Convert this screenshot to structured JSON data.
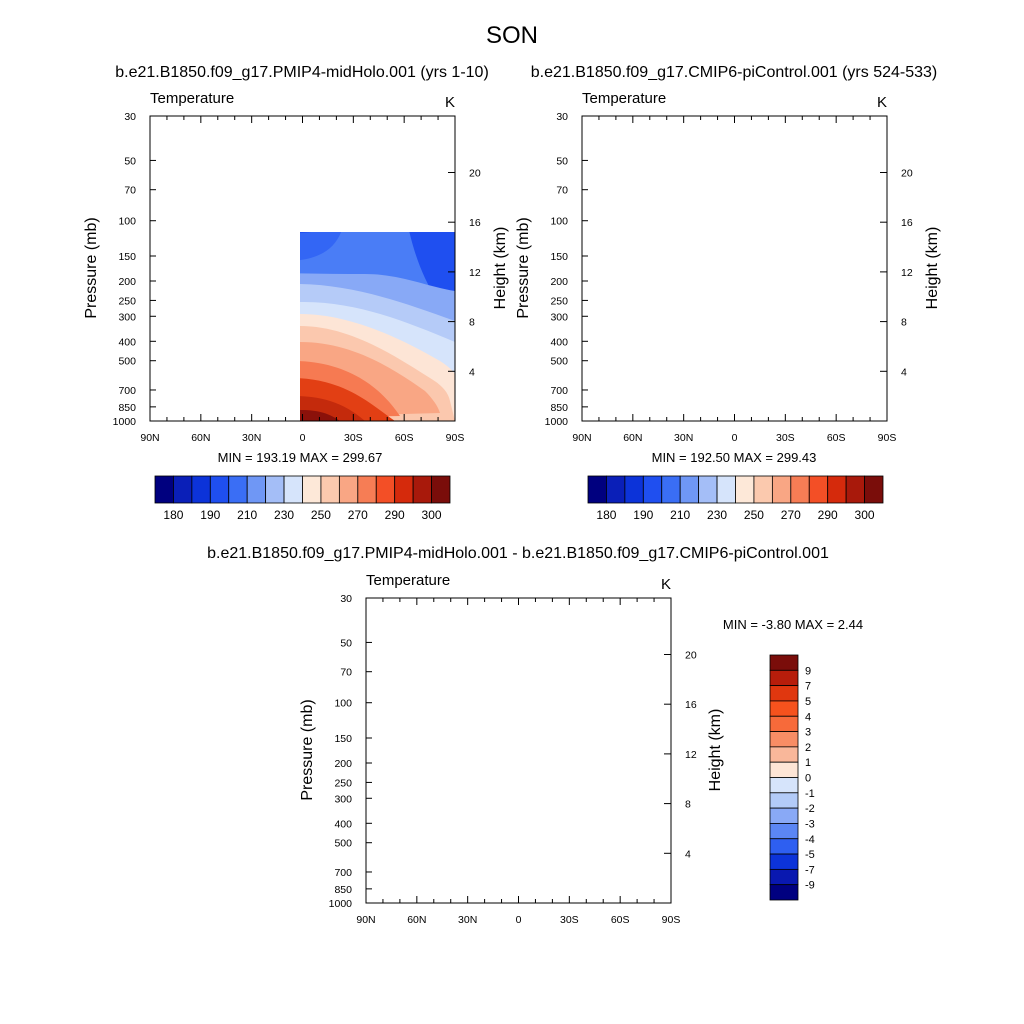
{
  "title": "SON",
  "chart_data": [
    {
      "type": "contour",
      "title": "b.e21.B1850.f09_g17.PMIP4-midHolo.001 (yrs 1-10)",
      "left_label": "Temperature",
      "units": "K",
      "ylabel": "Pressure (mb)",
      "ylabel_right": "Height (km)",
      "x_ticks": [
        "90N",
        "60N",
        "30N",
        "0",
        "30S",
        "60S",
        "90S"
      ],
      "y_ticks": [
        "30",
        "50",
        "70",
        "100",
        "150",
        "200",
        "250",
        "300",
        "400",
        "500",
        "700",
        "850",
        "1000"
      ],
      "height_ticks": [
        "20",
        "16",
        "12",
        "8",
        "4"
      ],
      "stats": "MIN = 193.19  MAX = 299.67",
      "colorbar_labels": [
        "180",
        "190",
        "210",
        "230",
        "250",
        "270",
        "290",
        "300"
      ]
    },
    {
      "type": "contour",
      "title": "b.e21.B1850.f09_g17.CMIP6-piControl.001 (yrs 524-533)",
      "left_label": "Temperature",
      "units": "K",
      "ylabel": "Pressure (mb)",
      "ylabel_right": "Height (km)",
      "x_ticks": [
        "90N",
        "60N",
        "30N",
        "0",
        "30S",
        "60S",
        "90S"
      ],
      "y_ticks": [
        "30",
        "50",
        "70",
        "100",
        "150",
        "200",
        "250",
        "300",
        "400",
        "500",
        "700",
        "850",
        "1000"
      ],
      "height_ticks": [
        "20",
        "16",
        "12",
        "8",
        "4"
      ],
      "stats": "MIN = 192.50  MAX = 299.43",
      "colorbar_labels": [
        "180",
        "190",
        "210",
        "230",
        "250",
        "270",
        "290",
        "300"
      ]
    },
    {
      "type": "contour",
      "title": "b.e21.B1850.f09_g17.PMIP4-midHolo.001 - b.e21.B1850.f09_g17.CMIP6-piControl.001",
      "left_label": "Temperature",
      "units": "K",
      "ylabel": "Pressure (mb)",
      "ylabel_right": "Height (km)",
      "x_ticks": [
        "90N",
        "60N",
        "30N",
        "0",
        "30S",
        "60S",
        "90S"
      ],
      "y_ticks": [
        "30",
        "50",
        "70",
        "100",
        "150",
        "200",
        "250",
        "300",
        "400",
        "500",
        "700",
        "850",
        "1000"
      ],
      "height_ticks": [
        "20",
        "16",
        "12",
        "8",
        "4"
      ],
      "stats": "MIN =  -3.80  MAX =   2.44",
      "colorbar_labels": [
        "9",
        "7",
        "5",
        "4",
        "3",
        "2",
        "1",
        "0",
        "-1",
        "-2",
        "-3",
        "-4",
        "-5",
        "-7",
        "-9"
      ]
    }
  ],
  "colors": {
    "abs_bar": [
      "#00007f",
      "#0a1fb8",
      "#0c33d9",
      "#1f4ff0",
      "#3a6ef5",
      "#6f97f5",
      "#a4bef7",
      "#d6e4fb",
      "#fde8d8",
      "#fbc9ae",
      "#f9a684",
      "#f67d55",
      "#f34f26",
      "#d52a0c",
      "#a8190b",
      "#7a0d0a"
    ],
    "diff_bar": [
      "#7a0d0a",
      "#b71d0b",
      "#e0370f",
      "#f6521d",
      "#f76a3a",
      "#f88d65",
      "#f9b79a",
      "#fde5d6",
      "#d6e4fb",
      "#b3cbf8",
      "#89a9f6",
      "#5b86f4",
      "#2e5ff1",
      "#0c33d9",
      "#0918b0",
      "#000080"
    ],
    "field_abs": {
      "c205": "#4a7df6",
      "c215": "#88a9f6",
      "c225": "#b5cbf8",
      "c235": "#d6e4fb",
      "c245": "#fde5d6",
      "c255": "#fbc8ae",
      "c265": "#f9a684",
      "c275": "#f67a52",
      "c285": "#e23f14",
      "c290": "#c42a0c",
      "c295": "#8b110a",
      "cold1": "#1f4ff0",
      "cold2": "#3366f5",
      "wedge": "#c3d4f9"
    },
    "field_diff": {
      "base": "#fde5d6",
      "warm": "#f9c9b0",
      "cool": "#d5e4fb"
    }
  }
}
